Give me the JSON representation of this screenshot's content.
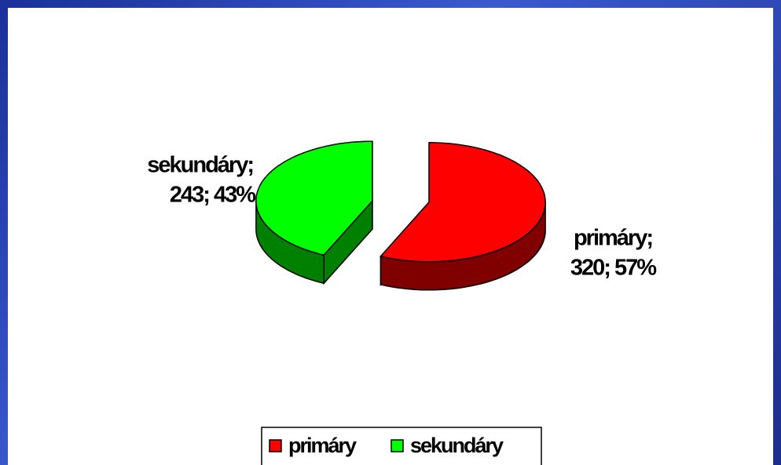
{
  "chart_data": {
    "type": "pie",
    "categories": [
      "primáry",
      "sekundáry"
    ],
    "values": [
      320,
      243
    ],
    "value_labels": [
      [
        "primáry;",
        "320; 57%"
      ],
      [
        "sekundáry;",
        "243; 43%"
      ]
    ],
    "colors": [
      "#ff0000",
      "#00ff00"
    ],
    "legend": "bottom"
  }
}
